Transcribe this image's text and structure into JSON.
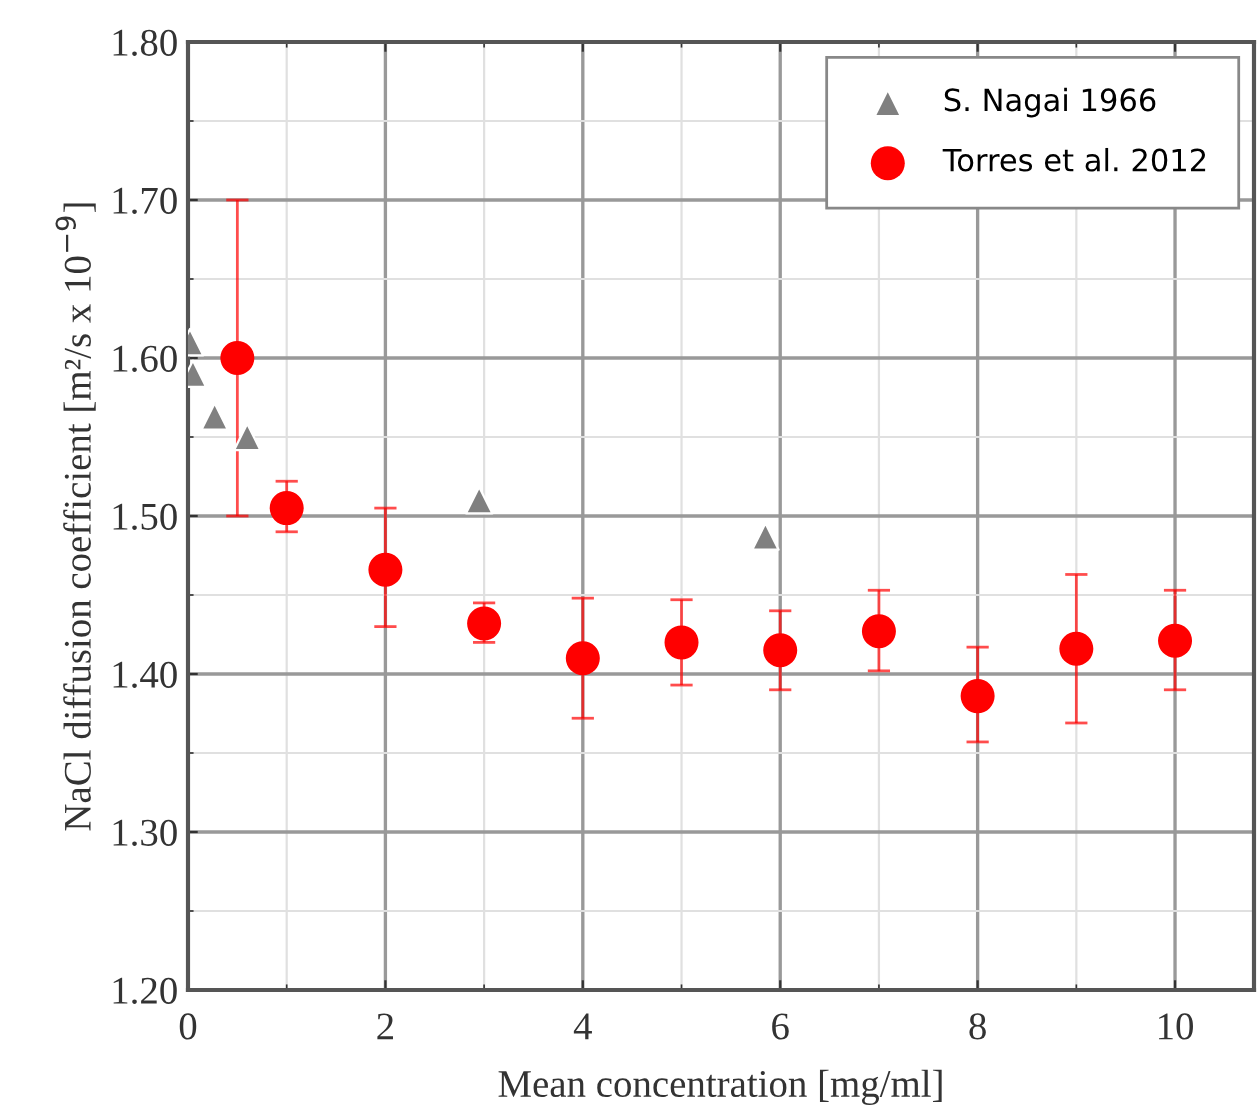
{
  "chart_data": {
    "type": "scatter",
    "xlabel": "Mean concentration [mg/ml]",
    "ylabel": "NaCl diffusion coefficient [m²/s x 10$^{−9}$]",
    "xlim": [
      0,
      10.8
    ],
    "xticks": [
      0,
      2,
      4,
      6,
      8,
      10
    ],
    "ylim": [
      1.2,
      1.8
    ],
    "yticks": [
      {
        "value": 1.2,
        "label": "1.20"
      },
      {
        "value": 1.3,
        "label": "1.30"
      },
      {
        "value": 1.4,
        "label": "1.40"
      },
      {
        "value": 1.5,
        "label": "1.50"
      },
      {
        "value": 1.6,
        "label": "1.60"
      },
      {
        "value": 1.7,
        "label": "1.70"
      },
      {
        "value": 1.8,
        "label": "1.80"
      }
    ],
    "grid": true,
    "legend": "top right",
    "series": [
      {
        "name": "S. Nagai 1966",
        "color": "#808080",
        "marker": "triangle",
        "x": [
          0.02,
          0.05,
          0.27,
          0.6,
          2.95,
          5.85
        ],
        "values": [
          1.61,
          1.59,
          1.563,
          1.55,
          1.51,
          1.487
        ]
      },
      {
        "name": "Torres et al. 2012",
        "color": "#ff0000",
        "marker": "circle",
        "x": [
          0.5,
          1,
          2,
          3,
          4,
          5,
          6,
          7,
          8,
          9,
          10
        ],
        "values": [
          1.6,
          1.505,
          1.466,
          1.432,
          1.41,
          1.42,
          1.415,
          1.427,
          1.386,
          1.416,
          1.421
        ],
        "errors": [
          [
            1.5,
            1.7
          ],
          [
            1.49,
            1.522
          ],
          [
            1.43,
            1.505
          ],
          [
            1.42,
            1.445
          ],
          [
            1.372,
            1.448
          ],
          [
            1.393,
            1.447
          ],
          [
            1.39,
            1.44
          ],
          [
            1.402,
            1.453
          ],
          [
            1.357,
            1.417
          ],
          [
            1.369,
            1.463
          ],
          [
            1.39,
            1.453
          ]
        ]
      }
    ]
  }
}
